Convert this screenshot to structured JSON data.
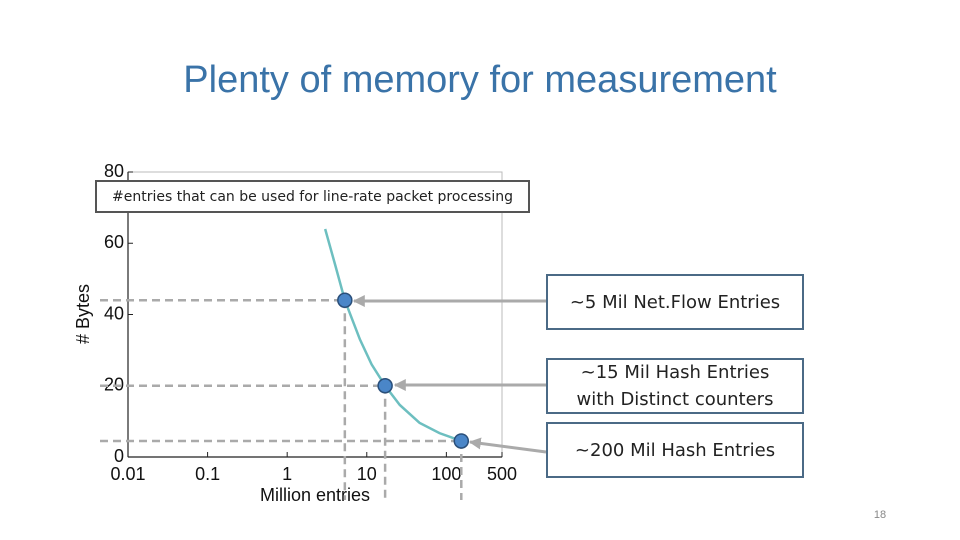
{
  "title": "Plenty of memory for measurement",
  "page_number": "18",
  "chart_data": {
    "type": "line",
    "xlabel": "Million entries",
    "ylabel": "# Bytes",
    "xscale": "log",
    "xlim": [
      0.01,
      500
    ],
    "ylim": [
      0,
      80
    ],
    "xticks": [
      0.01,
      0.1,
      1,
      10,
      100,
      500
    ],
    "yticks": [
      0,
      20,
      40,
      60,
      80
    ],
    "series": [
      {
        "color": "#6dbfc0",
        "x": [
          3,
          4,
          5.3,
          8.2,
          11.5,
          17,
          26,
          46,
          82,
          154
        ],
        "values": [
          64,
          54,
          44,
          33,
          26,
          20,
          14.6,
          9.6,
          6.7,
          4.5
        ]
      }
    ],
    "points": {
      "color": "#4a86c8",
      "x": [
        5.3,
        17,
        154
      ],
      "values": [
        44,
        20,
        4.5
      ]
    },
    "annotations": [
      "#entries that can be used for line-rate packet processing",
      "~5 Mil Net.Flow Entries",
      "~15 Mil Hash Entries with Distinct counters",
      "~200 Mil Hash Entries"
    ]
  }
}
